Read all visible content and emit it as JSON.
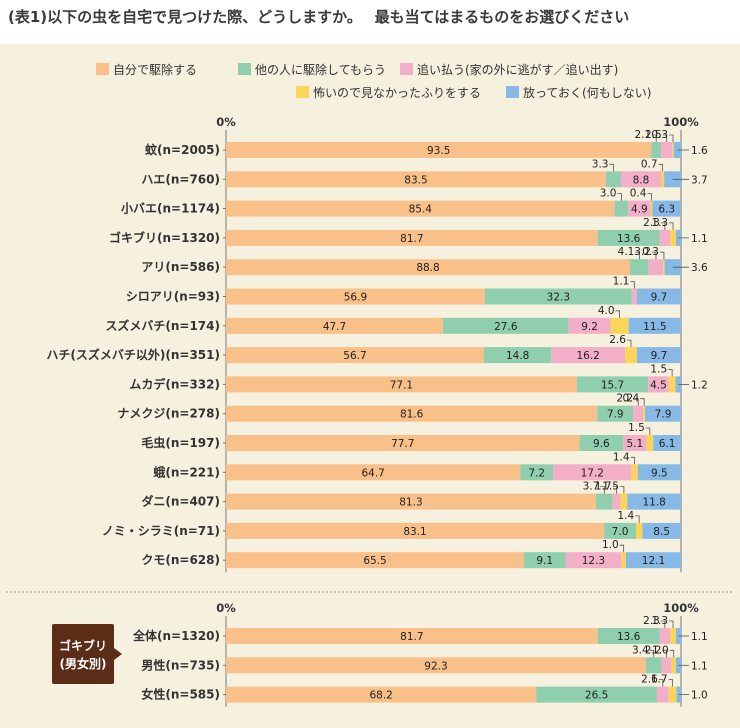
{
  "header": {
    "title": "(表1)以下の虫を自宅で見つけた際、どうしますか。　 最も当てはまるものをお選びください"
  },
  "chart_data": {
    "type": "bar",
    "stacked": true,
    "horizontal": true,
    "xlim": [
      0,
      100
    ],
    "axis_labels": {
      "start": "0%",
      "end": "100%"
    },
    "legend_position": "top",
    "series": [
      {
        "name": "自分で駆除する",
        "color": "#f9c189"
      },
      {
        "name": "他の人に駆除してもらう",
        "color": "#8fcfae"
      },
      {
        "name": "追い払う(家の外に逃がす／追い出す)",
        "color": "#f3afc8"
      },
      {
        "name": "怖いので見なかったふりをする",
        "color": "#fbd55a"
      },
      {
        "name": "放っておく(何もしない)",
        "color": "#86b9e5"
      }
    ],
    "rows": [
      {
        "label": "蚊(n=2005)",
        "values": [
          93.5,
          2.1,
          2.5,
          0.3,
          1.6
        ]
      },
      {
        "label": "ハエ(n=760)",
        "values": [
          83.5,
          3.3,
          8.8,
          0.7,
          3.7
        ]
      },
      {
        "label": "小バエ(n=1174)",
        "values": [
          85.4,
          3.0,
          4.9,
          0.4,
          6.3
        ]
      },
      {
        "label": "ゴキブリ(n=1320)",
        "values": [
          81.7,
          13.6,
          2.3,
          1.3,
          1.1
        ]
      },
      {
        "label": "アリ(n=586)",
        "values": [
          88.8,
          4.1,
          3.2,
          0.3,
          3.6
        ]
      },
      {
        "label": "シロアリ(n=93)",
        "values": [
          56.9,
          32.3,
          1.1,
          0,
          9.7
        ]
      },
      {
        "label": "スズメバチ(n=174)",
        "values": [
          47.7,
          27.6,
          9.2,
          4.0,
          11.5
        ]
      },
      {
        "label": "ハチ(スズメバチ以外)(n=351)",
        "values": [
          56.7,
          14.8,
          16.2,
          2.6,
          9.7
        ]
      },
      {
        "label": "ムカデ(n=332)",
        "values": [
          77.1,
          15.7,
          4.5,
          1.5,
          1.2
        ]
      },
      {
        "label": "ナメクジ(n=278)",
        "values": [
          81.6,
          7.9,
          2.2,
          0.4,
          7.9
        ]
      },
      {
        "label": "毛虫(n=197)",
        "values": [
          77.7,
          9.6,
          5.1,
          1.5,
          6.1
        ]
      },
      {
        "label": "蛾(n=221)",
        "values": [
          64.7,
          7.2,
          17.2,
          1.4,
          9.5
        ]
      },
      {
        "label": "ダニ(n=407)",
        "values": [
          81.3,
          3.7,
          1.7,
          1.5,
          11.8
        ]
      },
      {
        "label": "ノミ・シラミ(n=71)",
        "values": [
          83.1,
          7.0,
          0,
          1.4,
          8.5
        ]
      },
      {
        "label": "クモ(n=628)",
        "values": [
          65.5,
          9.1,
          12.3,
          1.0,
          12.1
        ]
      }
    ],
    "group2": {
      "badge": [
        "ゴキブリ",
        "(男女別)"
      ],
      "rows": [
        {
          "label": "全体(n=1320)",
          "values": [
            81.7,
            13.6,
            2.3,
            1.3,
            1.1
          ]
        },
        {
          "label": "男性(n=735)",
          "values": [
            92.3,
            3.4,
            2.2,
            1.0,
            1.1
          ]
        },
        {
          "label": "女性(n=585)",
          "values": [
            68.2,
            26.5,
            2.6,
            1.7,
            1.0
          ]
        }
      ]
    }
  }
}
